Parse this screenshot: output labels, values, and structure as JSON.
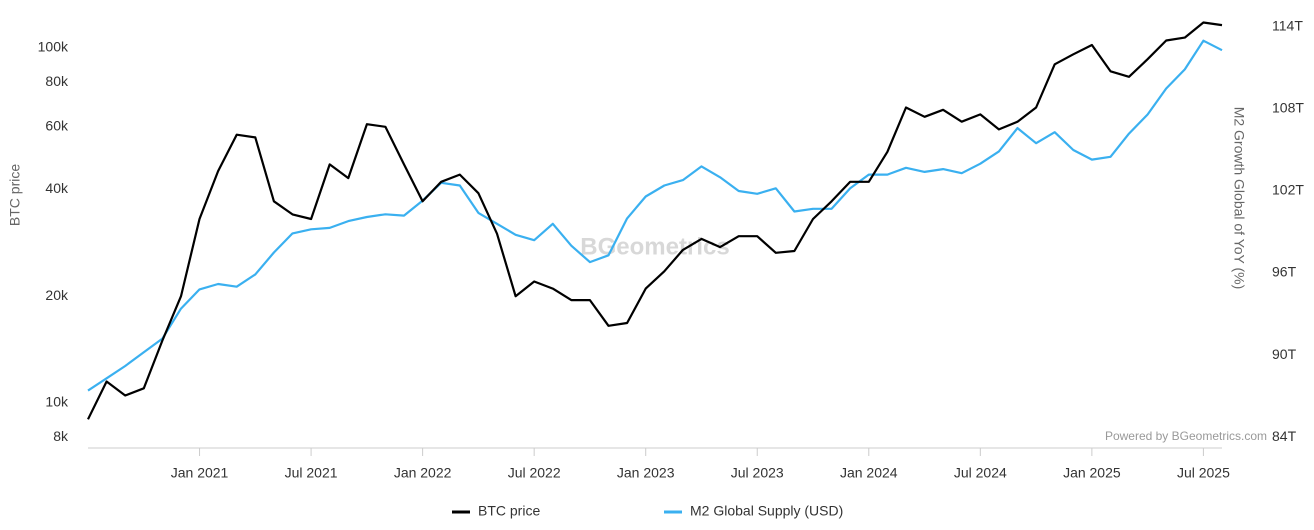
{
  "chart_data": {
    "type": "line",
    "y_title": "BTC price",
    "y2_title": "M2 Growth Global of YoY (%)",
    "watermark": "BGeometrics",
    "credit": "Powered by BGeometrics.com",
    "ylog": true,
    "xlim": [
      "2020-07",
      "2025-08"
    ],
    "xticks": [
      {
        "value": "2021-01",
        "label": "Jan 2021"
      },
      {
        "value": "2021-07",
        "label": "Jul 2021"
      },
      {
        "value": "2022-01",
        "label": "Jan 2022"
      },
      {
        "value": "2022-07",
        "label": "Jul 2022"
      },
      {
        "value": "2023-01",
        "label": "Jan 2023"
      },
      {
        "value": "2023-07",
        "label": "Jul 2023"
      },
      {
        "value": "2024-01",
        "label": "Jan 2024"
      },
      {
        "value": "2024-07",
        "label": "Jul 2024"
      },
      {
        "value": "2025-01",
        "label": "Jan 2025"
      },
      {
        "value": "2025-07",
        "label": "Jul 2025"
      }
    ],
    "ylim": [
      7470,
      124700
    ],
    "yticks": [
      {
        "value": 8000,
        "label": "8k"
      },
      {
        "value": 10000,
        "label": "10k"
      },
      {
        "value": 20000,
        "label": "20k"
      },
      {
        "value": 40000,
        "label": "40k"
      },
      {
        "value": 60000,
        "label": "60k"
      },
      {
        "value": 80000,
        "label": "80k"
      },
      {
        "value": 100000,
        "label": "100k"
      }
    ],
    "y2lim": [
      83.2,
      114.95
    ],
    "y2ticks": [
      {
        "value": 84,
        "label": "84T"
      },
      {
        "value": 90,
        "label": "90T"
      },
      {
        "value": 96,
        "label": "96T"
      },
      {
        "value": 102,
        "label": "102T"
      },
      {
        "value": 108,
        "label": "108T"
      },
      {
        "value": 114,
        "label": "114T"
      }
    ],
    "x": [
      "2020-07",
      "2020-08",
      "2020-09",
      "2020-10",
      "2020-11",
      "2020-12",
      "2021-01",
      "2021-02",
      "2021-03",
      "2021-04",
      "2021-05",
      "2021-06",
      "2021-07",
      "2021-08",
      "2021-09",
      "2021-10",
      "2021-11",
      "2021-12",
      "2022-01",
      "2022-02",
      "2022-03",
      "2022-04",
      "2022-05",
      "2022-06",
      "2022-07",
      "2022-08",
      "2022-09",
      "2022-10",
      "2022-11",
      "2022-12",
      "2023-01",
      "2023-02",
      "2023-03",
      "2023-04",
      "2023-05",
      "2023-06",
      "2023-07",
      "2023-08",
      "2023-09",
      "2023-10",
      "2023-11",
      "2023-12",
      "2024-01",
      "2024-02",
      "2024-03",
      "2024-04",
      "2024-05",
      "2024-06",
      "2024-07",
      "2024-08",
      "2024-09",
      "2024-10",
      "2024-11",
      "2024-12",
      "2025-01",
      "2025-02",
      "2025-03",
      "2025-04",
      "2025-05",
      "2025-06",
      "2025-07",
      "2025-08"
    ],
    "series": [
      {
        "name": "BTC price",
        "color": "#000000",
        "values": [
          9000,
          11500,
          10500,
          11000,
          15000,
          20000,
          33000,
          45000,
          57000,
          56000,
          37000,
          34000,
          33000,
          47000,
          43000,
          61000,
          60000,
          47000,
          37000,
          42000,
          44000,
          39000,
          30000,
          20000,
          22000,
          21000,
          19500,
          19500,
          16500,
          16800,
          21000,
          23500,
          27000,
          29000,
          27500,
          29500,
          29500,
          26500,
          26800,
          33000,
          37000,
          42000,
          42000,
          51000,
          68000,
          64000,
          67000,
          62000,
          65000,
          59000,
          62000,
          68000,
          90000,
          96000,
          102000,
          86000,
          83000,
          93000,
          105000,
          107000,
          118000,
          116000
        ]
      },
      {
        "name": "M2 Global Supply (USD)",
        "color": "#3ab0f0",
        "axis": "y2",
        "values": [
          87.4,
          88.3,
          89.2,
          90.2,
          91.2,
          93.4,
          94.8,
          95.2,
          95.0,
          95.9,
          97.5,
          98.9,
          99.2,
          99.3,
          99.8,
          100.1,
          100.3,
          100.2,
          101.3,
          102.6,
          102.4,
          100.4,
          99.6,
          98.8,
          98.4,
          99.6,
          98.0,
          96.8,
          97.3,
          100.0,
          101.6,
          102.4,
          102.8,
          103.8,
          103.0,
          102.0,
          101.8,
          102.2,
          100.5,
          100.7,
          100.7,
          102.2,
          103.2,
          103.2,
          103.7,
          103.4,
          103.6,
          103.3,
          104.0,
          104.9,
          106.6,
          105.5,
          106.3,
          105.0,
          104.3,
          104.5,
          106.2,
          107.6,
          109.5,
          110.9,
          113.0,
          112.3
        ]
      }
    ]
  }
}
